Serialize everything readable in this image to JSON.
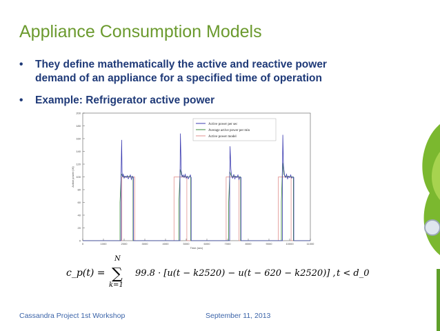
{
  "slide": {
    "title": "Appliance Consumption Models",
    "bullets": [
      "They define mathematically the active and reactive power",
      "demand of an appliance for a specified time of operation",
      "Example: Refrigerator active power"
    ],
    "bullet_symbol": "•",
    "footer_left": "Cassandra Project 1st Workshop",
    "footer_center": "September 11, 2013",
    "colors": {
      "title": "#6b9a2e",
      "bullets": "#1f3a78",
      "footer": "#3a63a8"
    }
  },
  "formula": {
    "lhs": "c_p(t) =",
    "sum_upper": "N",
    "sum_lower": "k=1",
    "body": "99.8 · [u(t − k2520) − u(t − 620 − k2520)] ,",
    "condition": "t < d_0"
  },
  "chart_data": {
    "type": "line",
    "ylabel": "Active power (W)",
    "xlabel": "Time (sec)",
    "xlim": [
      0,
      11000
    ],
    "ylim": [
      0,
      200
    ],
    "xticks": [
      0,
      1000,
      2000,
      3000,
      4000,
      5000,
      6000,
      7000,
      8000,
      9000,
      10000,
      11000
    ],
    "yticks": [
      0,
      20,
      40,
      60,
      80,
      100,
      120,
      140,
      160,
      180,
      200
    ],
    "legend": [
      "Active power per sec",
      "Average active power per min",
      "Active power model"
    ],
    "legend_position": "top-right",
    "series": [
      {
        "name": "Active power per sec",
        "color": "#3b3bb0",
        "x": [
          0,
          1850,
          1850,
          1880,
          1900,
          1920,
          1960,
          2000,
          2050,
          2100,
          2150,
          2200,
          2250,
          2300,
          2350,
          2400,
          2440,
          2450,
          2450,
          4700,
          4700,
          4720,
          4760,
          4800,
          4850,
          4900,
          4950,
          5000,
          5050,
          5100,
          5150,
          5200,
          5230,
          5240,
          5240,
          7100,
          7100,
          7120,
          7160,
          7200,
          7250,
          7300,
          7350,
          7400,
          7450,
          7500,
          7550,
          7600,
          7640,
          7650,
          7650,
          9650,
          9650,
          9670,
          9700,
          9750,
          9800,
          9850,
          9900,
          9950,
          10000,
          10050,
          10100,
          10150,
          10190,
          10200,
          10200,
          11000
        ],
        "y": [
          0,
          0,
          100,
          158,
          108,
          100,
          104,
          98,
          101,
          99,
          102,
          97,
          100,
          103,
          96,
          101,
          99,
          99,
          0,
          0,
          100,
          168,
          110,
          100,
          103,
          99,
          104,
          98,
          101,
          97,
          100,
          103,
          99,
          99,
          0,
          0,
          100,
          148,
          112,
          100,
          98,
          104,
          97,
          101,
          99,
          103,
          96,
          100,
          99,
          99,
          0,
          0,
          100,
          166,
          118,
          102,
          99,
          104,
          97,
          101,
          99,
          103,
          98,
          100,
          99,
          99,
          0,
          0
        ]
      },
      {
        "name": "Average active power per min",
        "color": "#3a8a3a",
        "x": [
          0,
          1800,
          1800,
          1860,
          1920,
          1980,
          2040,
          2100,
          2160,
          2220,
          2280,
          2340,
          2400,
          2430,
          2430,
          4650,
          4650,
          4710,
          4770,
          4830,
          4890,
          4950,
          5010,
          5070,
          5130,
          5190,
          5220,
          5220,
          7050,
          7050,
          7110,
          7170,
          7230,
          7290,
          7350,
          7410,
          7470,
          7530,
          7590,
          7630,
          7630,
          9600,
          9600,
          9660,
          9720,
          9780,
          9840,
          9900,
          9960,
          10020,
          10080,
          10140,
          10180,
          10180,
          11000
        ],
        "y": [
          0,
          0,
          60,
          105,
          101,
          100,
          101,
          100,
          100,
          101,
          100,
          100,
          100,
          100,
          0,
          0,
          62,
          112,
          103,
          101,
          100,
          101,
          100,
          100,
          100,
          100,
          100,
          0,
          0,
          58,
          108,
          102,
          101,
          100,
          101,
          100,
          100,
          100,
          100,
          100,
          0,
          0,
          61,
          122,
          104,
          101,
          100,
          101,
          100,
          100,
          100,
          100,
          100,
          0,
          0
        ]
      },
      {
        "name": "Active power model",
        "color": "#e0908f",
        "x": [
          0,
          1890,
          1890,
          2510,
          2510,
          4410,
          4410,
          5030,
          5030,
          6930,
          6930,
          7550,
          7550,
          9450,
          9450,
          10070,
          10070,
          11000
        ],
        "y": [
          0,
          0,
          99.8,
          99.8,
          0,
          0,
          99.8,
          99.8,
          0,
          0,
          99.8,
          99.8,
          0,
          0,
          99.8,
          99.8,
          0,
          0
        ]
      }
    ]
  }
}
